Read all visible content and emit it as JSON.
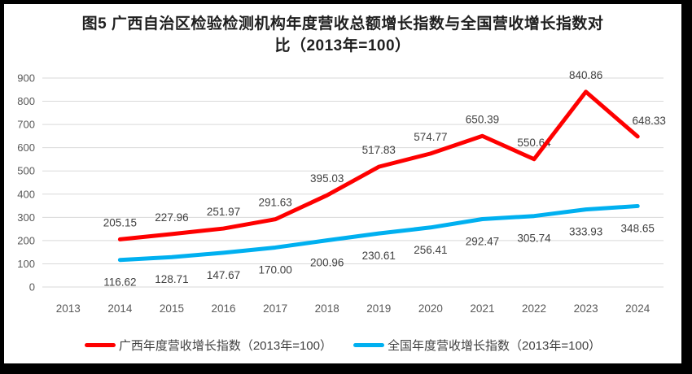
{
  "figure": {
    "title_line1": "图5  广西自治区检验检测机构年度营收总额增长指数与全国营收增长指数对",
    "title_line2": "比（2013年=100）"
  },
  "chart_data": {
    "type": "line",
    "title": "图5 广西自治区检验检测机构年度营收总额增长指数与全国营收增长指数对比（2013年=100）",
    "categories": [
      "2013",
      "2014",
      "2015",
      "2016",
      "2017",
      "2018",
      "2019",
      "2020",
      "2021",
      "2022",
      "2023",
      "2024"
    ],
    "series": [
      {
        "name": "广西年度营收增长指数（2013年=100）",
        "color": "#fe0000",
        "start_category": "2014",
        "values": [
          205.15,
          227.96,
          251.97,
          291.63,
          395.03,
          517.83,
          574.77,
          650.39,
          550.64,
          840.86,
          648.33
        ],
        "labels": [
          "205.15",
          "227.96",
          "251.97",
          "291.63",
          "395.03",
          "517.83",
          "574.77",
          "650.39",
          "550.64",
          "840.86",
          "648.33"
        ],
        "label_position": "above"
      },
      {
        "name": "全国年度营收增长指数（2013年=100）",
        "color": "#00b0f0",
        "start_category": "2014",
        "values": [
          116.62,
          128.71,
          147.67,
          170.0,
          200.96,
          230.61,
          256.41,
          292.47,
          305.74,
          333.93,
          348.65
        ],
        "labels": [
          "116.62",
          "128.71",
          "147.67",
          "170.00",
          "200.96",
          "230.61",
          "256.41",
          "292.47",
          "305.74",
          "333.93",
          "348.65"
        ],
        "label_position": "below"
      }
    ],
    "y_axis": {
      "min": 0,
      "max": 900,
      "step": 100,
      "ticks": [
        0,
        100,
        200,
        300,
        400,
        500,
        600,
        700,
        800,
        900
      ]
    },
    "grid": "horizontal",
    "gridline_color": "#d9d9d9",
    "legend_position": "bottom"
  }
}
